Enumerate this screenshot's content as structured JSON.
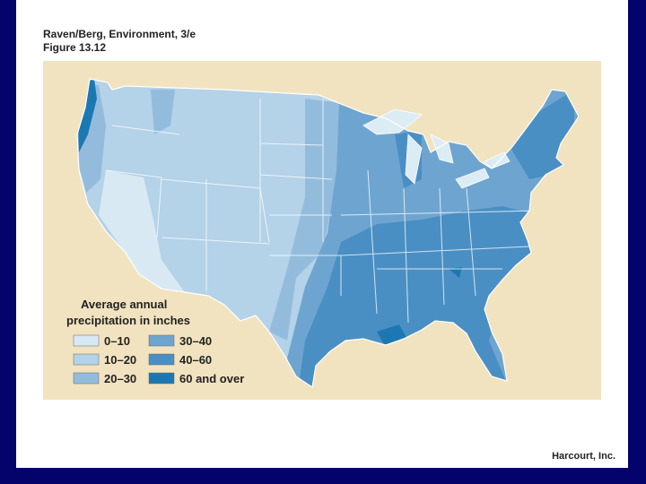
{
  "header": {
    "title": "Raven/Berg, Environment, 3/e",
    "figure": "Figure 13.12"
  },
  "legend": {
    "title_line1": "Average annual",
    "title_line2": "precipitation in inches",
    "items": [
      {
        "label": "0–10",
        "color": "#d9e9f3"
      },
      {
        "label": "10–20",
        "color": "#b4d2e8"
      },
      {
        "label": "20–30",
        "color": "#93bcdc"
      },
      {
        "label": "30–40",
        "color": "#6ea5d0"
      },
      {
        "label": "40–60",
        "color": "#4a8fc3"
      },
      {
        "label": "60 and over",
        "color": "#1c78b2"
      }
    ]
  },
  "footer": {
    "credit": "Harcourt, Inc."
  }
}
